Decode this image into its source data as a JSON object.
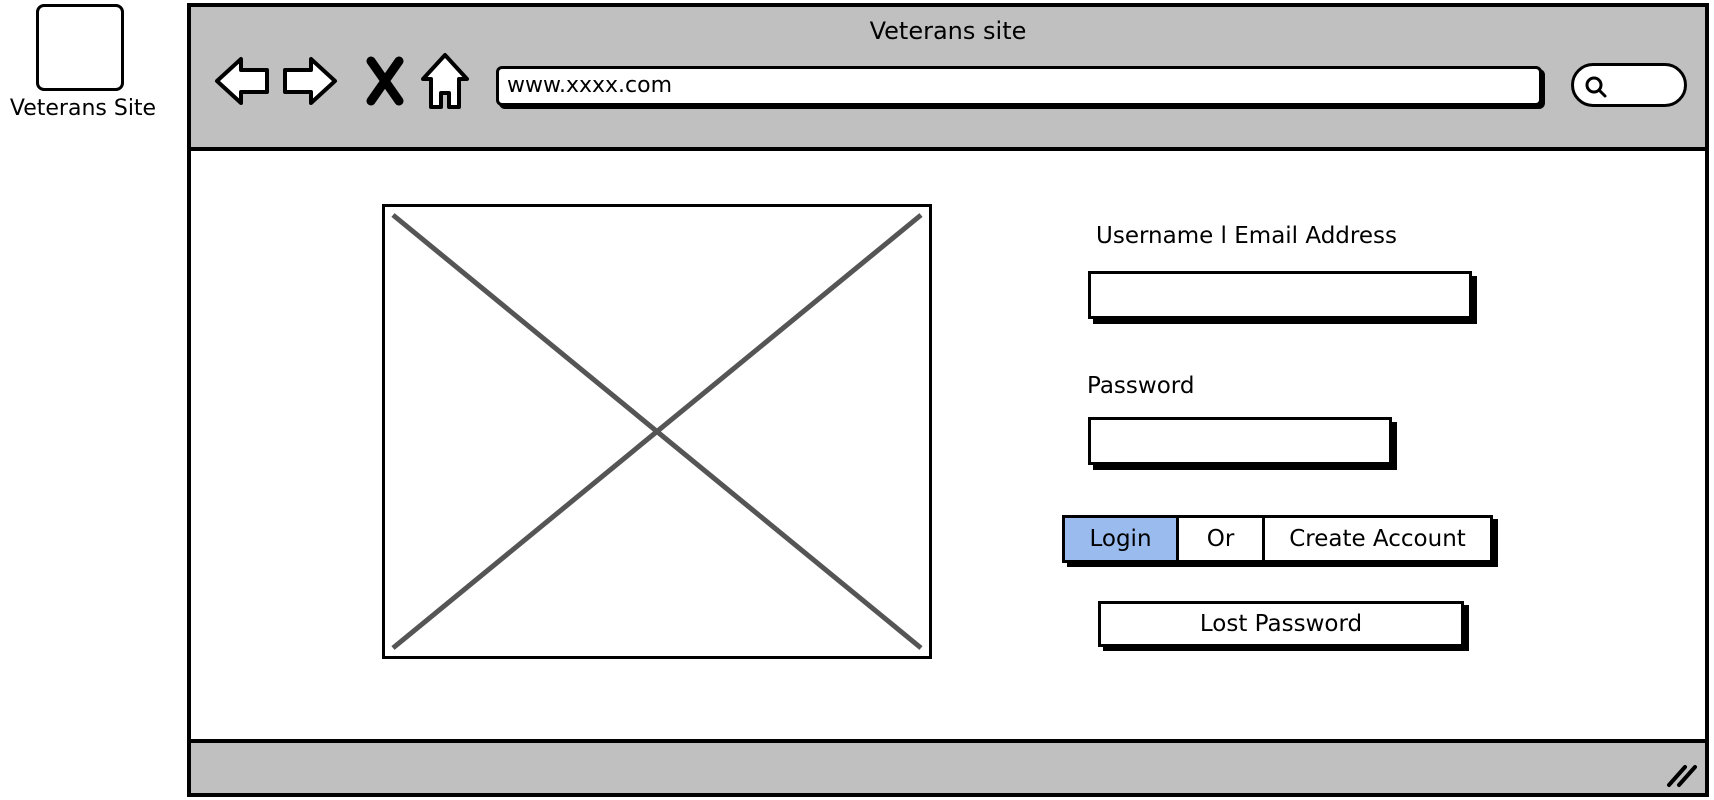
{
  "sidebar": {
    "label": "Veterans Site"
  },
  "browser": {
    "title": "Veterans site",
    "url": "www.xxxx.com",
    "icons": [
      "back-arrow-icon",
      "forward-arrow-icon",
      "close-icon",
      "home-icon",
      "search-icon",
      "resize-grip-icon"
    ]
  },
  "form": {
    "username_label": "Username l Email Address",
    "username_value": "",
    "password_label": "Password",
    "password_value": "",
    "buttons": {
      "login": "Login",
      "or": "Or",
      "create_account": "Create Account",
      "lost_password": "Lost Password"
    }
  },
  "colors": {
    "chrome": "#c0c0c0",
    "login_highlight": "#99bbee",
    "placeholder_x": "#555555"
  }
}
